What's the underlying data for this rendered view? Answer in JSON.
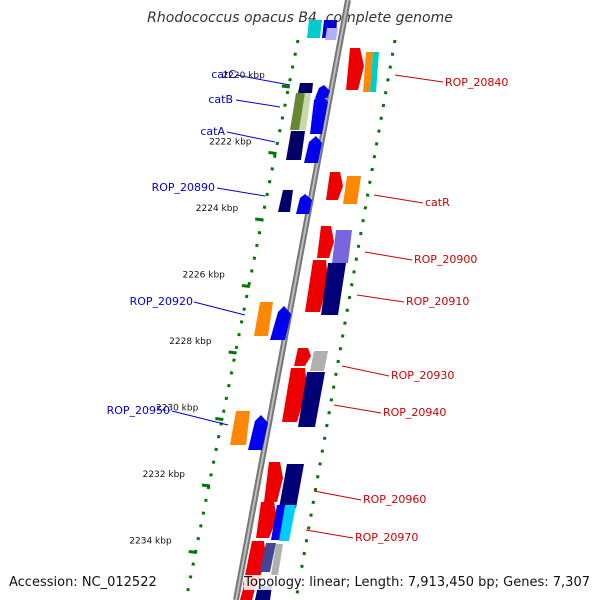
{
  "title": "Rhodococcus opacus B4, complete genome",
  "footer": {
    "accession": "Accession: NC_012522",
    "summary": "Topology: linear; Length: 7,913,450 bp; Genes: 7,307"
  },
  "colors": {
    "reverse_label": "#0000cc",
    "forward_label": "#cc0000",
    "backbone": "#888888",
    "ticks": "#007700"
  },
  "scale": {
    "unit": "kbp",
    "ticks": [
      {
        "label": "2220 kbp",
        "kbp": 2220
      },
      {
        "label": "2222 kbp",
        "kbp": 2222
      },
      {
        "label": "2224 kbp",
        "kbp": 2224
      },
      {
        "label": "2226 kbp",
        "kbp": 2226
      },
      {
        "label": "2228 kbp",
        "kbp": 2228
      },
      {
        "label": "2230 kbp",
        "kbp": 2230
      },
      {
        "label": "2232 kbp",
        "kbp": 2232
      },
      {
        "label": "2234 kbp",
        "kbp": 2234
      }
    ]
  },
  "reverse_labels": [
    "catC",
    "catB",
    "catA",
    "ROP_20890",
    "ROP_20920",
    "ROP_20950"
  ],
  "forward_labels": [
    "ROP_20840",
    "catR",
    "ROP_20900",
    "ROP_20910",
    "ROP_20930",
    "ROP_20940",
    "ROP_20960",
    "ROP_20970"
  ]
}
